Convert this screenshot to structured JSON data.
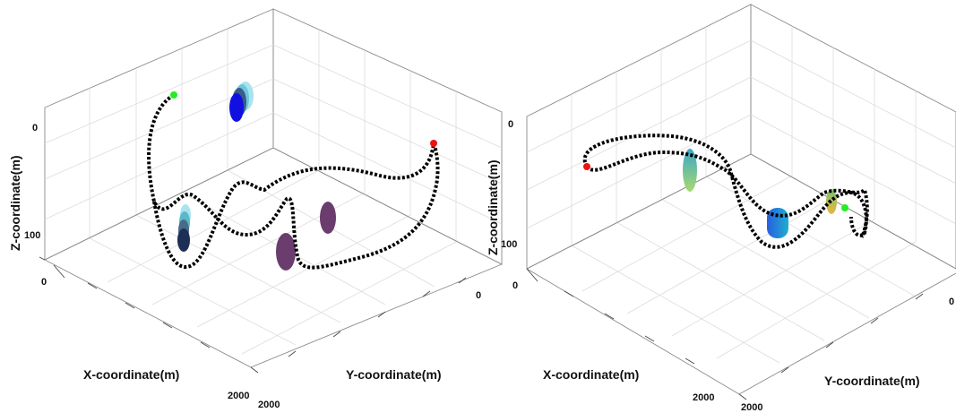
{
  "chart_data": [
    {
      "type": "scatter",
      "title": "",
      "xlabel": "X-coordinate(m)",
      "ylabel": "Y-coordinate(m)",
      "zlabel": "Z-coordinate(m)",
      "x_ticks": [
        "0",
        "2000"
      ],
      "y_ticks": [
        "0",
        "2000"
      ],
      "z_ticks": [
        "0",
        "100"
      ],
      "grid": true,
      "trajectory": {
        "start_marker_color": "#22ee22",
        "end_marker_color": "#ee1111",
        "line_color": "#000000"
      },
      "obstacles": [
        {
          "name": "cluster-upper",
          "colors": [
            "#a8e4f0",
            "#6cc7db",
            "#3a5a8a",
            "#1010e0"
          ]
        },
        {
          "name": "cluster-lower",
          "colors": [
            "#a8e4f0",
            "#5ab8c8",
            "#4a6a8a",
            "#1e2f55"
          ]
        },
        {
          "name": "ellipse-right",
          "colors": [
            "#6b3d6e"
          ]
        },
        {
          "name": "ellipse-center",
          "colors": [
            "#6b3d6e"
          ]
        }
      ]
    },
    {
      "type": "scatter",
      "title": "",
      "xlabel": "X-coordinate(m)",
      "ylabel": "Y-coordinate(m)",
      "zlabel": "Z-coordinate(m)",
      "x_ticks": [
        "0",
        "2000"
      ],
      "y_ticks": [
        "0",
        "2000"
      ],
      "z_ticks": [
        "0",
        "100"
      ],
      "grid": true,
      "trajectory": {
        "start_marker_color": "#22ee22",
        "end_marker_color": "#ee1111",
        "line_color": "#000000"
      },
      "obstacles": [
        {
          "name": "column-gradient",
          "colors": [
            "#3aa8c8",
            "#7ecf8a"
          ]
        },
        {
          "name": "cylinder-blue",
          "colors": [
            "#2a6ed8",
            "#1e9ed0"
          ]
        },
        {
          "name": "cylinder-yellow",
          "colors": [
            "#e0c040",
            "#7cc070"
          ]
        }
      ]
    }
  ]
}
